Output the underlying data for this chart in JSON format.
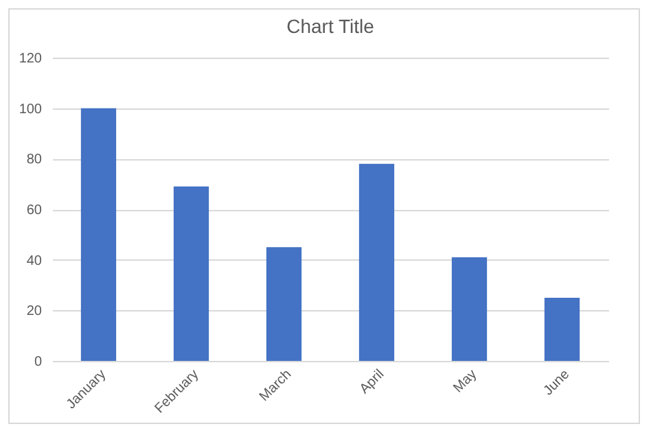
{
  "chart_data": {
    "type": "bar",
    "title": "Chart Title",
    "categories": [
      "January",
      "February",
      "March",
      "April",
      "May",
      "June"
    ],
    "values": [
      100,
      69,
      45,
      78,
      41,
      25
    ],
    "color": "#4472c4",
    "ylim": [
      0,
      120
    ],
    "yticks": [
      0,
      20,
      40,
      60,
      80,
      100,
      120
    ],
    "grid": "y"
  }
}
